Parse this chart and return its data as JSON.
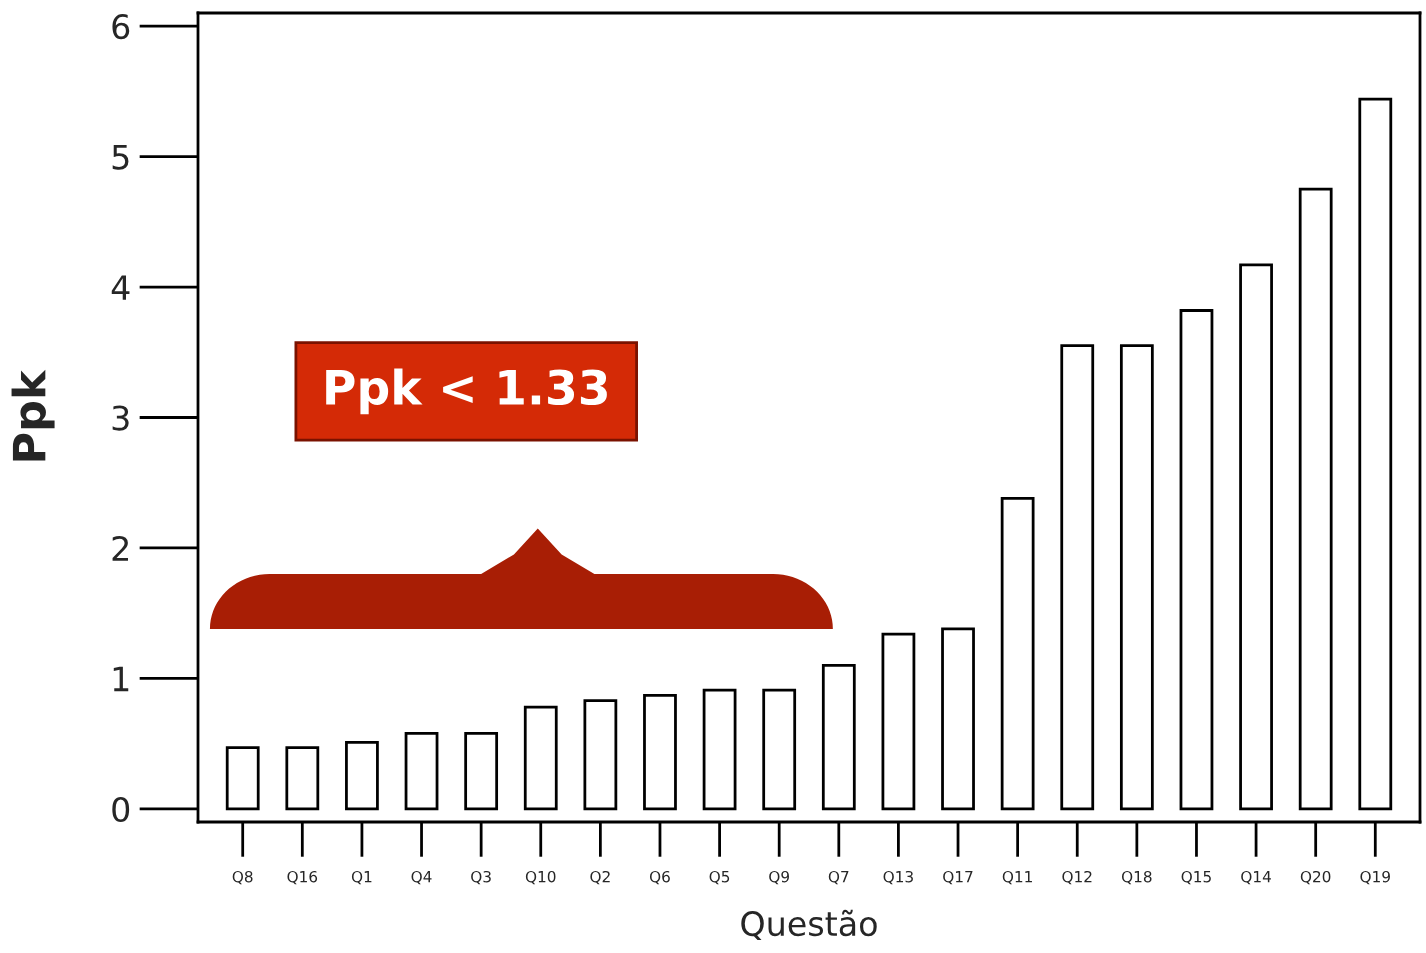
{
  "chart_data": {
    "type": "bar",
    "xlabel": "Questão",
    "ylabel": "Ppk",
    "categories": [
      "Q8",
      "Q16",
      "Q1",
      "Q4",
      "Q3",
      "Q10",
      "Q2",
      "Q6",
      "Q5",
      "Q9",
      "Q7",
      "Q13",
      "Q17",
      "Q11",
      "Q12",
      "Q18",
      "Q15",
      "Q14",
      "Q20",
      "Q19"
    ],
    "values": [
      0.47,
      0.47,
      0.51,
      0.58,
      0.58,
      0.78,
      0.83,
      0.87,
      0.91,
      0.91,
      1.1,
      1.34,
      1.38,
      2.38,
      3.55,
      3.55,
      3.82,
      4.17,
      4.75,
      5.44
    ],
    "color": "#ffffff",
    "ylim": [
      -0.1,
      6.1
    ],
    "yticks": [
      0,
      1,
      2,
      3,
      4,
      5,
      6
    ],
    "grid": false,
    "legend": false,
    "annotations": [
      "Ppk < 1.33"
    ]
  }
}
